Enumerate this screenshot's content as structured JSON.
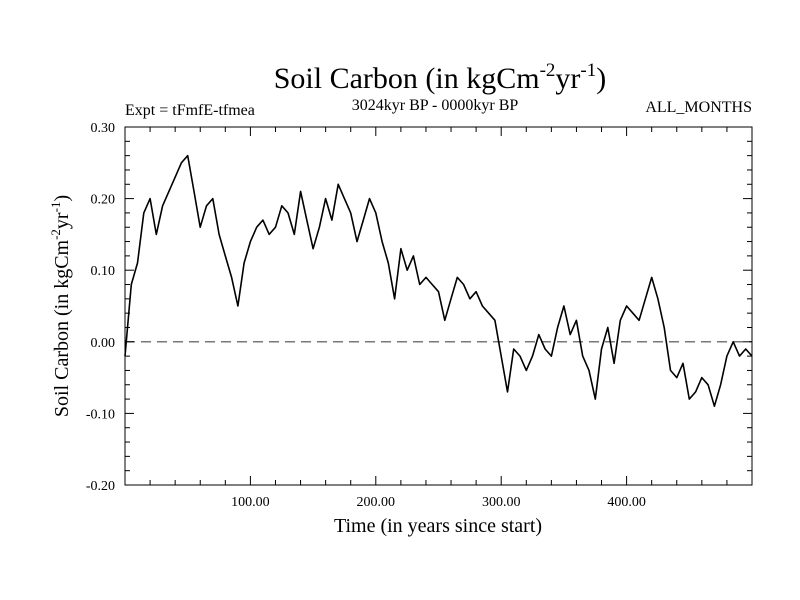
{
  "chart_data": {
    "type": "line",
    "title_main": "Soil Carbon (in kgCm",
    "title_sup1": "-2",
    "title_mid": "yr",
    "title_sup2": "-1",
    "title_end": ")",
    "subtitle_left": "Expt = tFmfE-tfmea",
    "subtitle_center": "3024kyr BP - 0000kyr BP",
    "subtitle_right": "ALL_MONTHS",
    "xlabel": "Time (in years since start)",
    "ylabel_main": "Soil Carbon (in kgCm",
    "ylabel_sup1": "-2",
    "ylabel_mid": "yr",
    "ylabel_sup2": "-1",
    "ylabel_end": ")",
    "xlim": [
      0,
      500
    ],
    "ylim": [
      -0.2,
      0.3
    ],
    "xticks": [
      100,
      200,
      300,
      400
    ],
    "xtick_labels": [
      "100.00",
      "200.00",
      "300.00",
      "400.00"
    ],
    "yticks": [
      -0.2,
      -0.1,
      0.0,
      0.1,
      0.2,
      0.3
    ],
    "ytick_labels": [
      "-0.20",
      "-0.10",
      "0.00",
      "0.10",
      "0.20",
      "0.30"
    ],
    "reference_line": {
      "y": 0.0,
      "style": "dashed"
    },
    "series": [
      {
        "name": "Soil Carbon",
        "color": "#000000",
        "x": [
          0,
          5,
          10,
          15,
          20,
          25,
          30,
          35,
          40,
          45,
          50,
          55,
          60,
          65,
          70,
          75,
          80,
          85,
          90,
          95,
          100,
          105,
          110,
          115,
          120,
          125,
          130,
          135,
          140,
          145,
          150,
          155,
          160,
          165,
          170,
          175,
          180,
          185,
          190,
          195,
          200,
          205,
          210,
          215,
          220,
          225,
          230,
          235,
          240,
          245,
          250,
          255,
          260,
          265,
          270,
          275,
          280,
          285,
          290,
          295,
          300,
          305,
          310,
          315,
          320,
          325,
          330,
          335,
          340,
          345,
          350,
          355,
          360,
          365,
          370,
          375,
          380,
          385,
          390,
          395,
          400,
          405,
          410,
          415,
          420,
          425,
          430,
          435,
          440,
          445,
          450,
          455,
          460,
          465,
          470,
          475,
          480,
          485,
          490,
          495,
          500
        ],
        "y": [
          -0.02,
          0.08,
          0.11,
          0.18,
          0.2,
          0.15,
          0.19,
          0.21,
          0.23,
          0.25,
          0.26,
          0.21,
          0.16,
          0.19,
          0.2,
          0.15,
          0.12,
          0.09,
          0.05,
          0.11,
          0.14,
          0.16,
          0.17,
          0.15,
          0.16,
          0.19,
          0.18,
          0.15,
          0.21,
          0.17,
          0.13,
          0.16,
          0.2,
          0.17,
          0.22,
          0.2,
          0.18,
          0.14,
          0.17,
          0.2,
          0.18,
          0.14,
          0.11,
          0.06,
          0.13,
          0.1,
          0.12,
          0.08,
          0.09,
          0.08,
          0.07,
          0.03,
          0.06,
          0.09,
          0.08,
          0.06,
          0.07,
          0.05,
          0.04,
          0.03,
          -0.02,
          -0.07,
          -0.01,
          -0.02,
          -0.04,
          -0.02,
          0.01,
          -0.01,
          -0.02,
          0.02,
          0.05,
          0.01,
          0.03,
          -0.02,
          -0.04,
          -0.08,
          -0.01,
          0.02,
          -0.03,
          0.03,
          0.05,
          0.04,
          0.03,
          0.06,
          0.09,
          0.06,
          0.02,
          -0.04,
          -0.05,
          -0.03,
          -0.08,
          -0.07,
          -0.05,
          -0.06,
          -0.09,
          -0.06,
          -0.02,
          0.0,
          -0.02,
          -0.01,
          -0.02
        ]
      }
    ]
  }
}
